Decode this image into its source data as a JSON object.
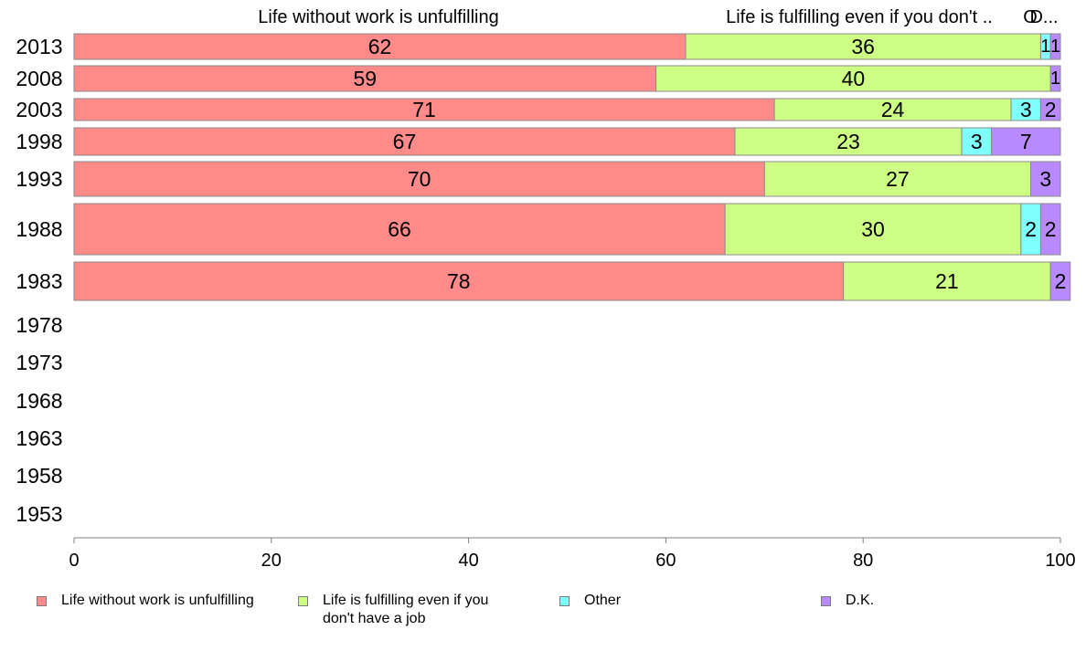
{
  "chart_data": {
    "type": "bar",
    "orientation": "horizontal",
    "stacked": true,
    "categories": [
      "2013",
      "2008",
      "2003",
      "1998",
      "1993",
      "1988",
      "1983",
      "1978",
      "1973",
      "1968",
      "1963",
      "1958",
      "1953"
    ],
    "series": [
      {
        "name": "Life without work is unfulfilling",
        "color": "#ff8a8a",
        "values": [
          62,
          59,
          71,
          67,
          70,
          66,
          78,
          null,
          null,
          null,
          null,
          null,
          null
        ]
      },
      {
        "name": "Life is fulfilling even if you don't have a job",
        "color": "#cdff85",
        "values": [
          36,
          40,
          24,
          23,
          27,
          30,
          21,
          null,
          null,
          null,
          null,
          null,
          null
        ]
      },
      {
        "name": "Other",
        "color": "#80ffff",
        "values": [
          1,
          0,
          3,
          3,
          0,
          2,
          0,
          null,
          null,
          null,
          null,
          null,
          null
        ]
      },
      {
        "name": "D.K.",
        "color": "#b98aff",
        "values": [
          1,
          1,
          2,
          7,
          3,
          2,
          2,
          null,
          null,
          null,
          null,
          null,
          null
        ]
      }
    ],
    "top_labels": [
      "Life without work is unfulfilling",
      "Life is fulfilling even if you don't ..",
      "O",
      "D..."
    ],
    "xlim": [
      0,
      100
    ],
    "xticks": [
      0,
      20,
      40,
      60,
      80,
      100
    ],
    "legend_position": "bottom",
    "grid": false
  },
  "legend": [
    {
      "label": "Life without work is unfulfilling",
      "color": "#ff8a8a"
    },
    {
      "label": "Life is fulfilling even if you don't have a job",
      "color": "#cdff85"
    },
    {
      "label": "Other",
      "color": "#80ffff"
    },
    {
      "label": "D.K.",
      "color": "#b98aff"
    }
  ]
}
